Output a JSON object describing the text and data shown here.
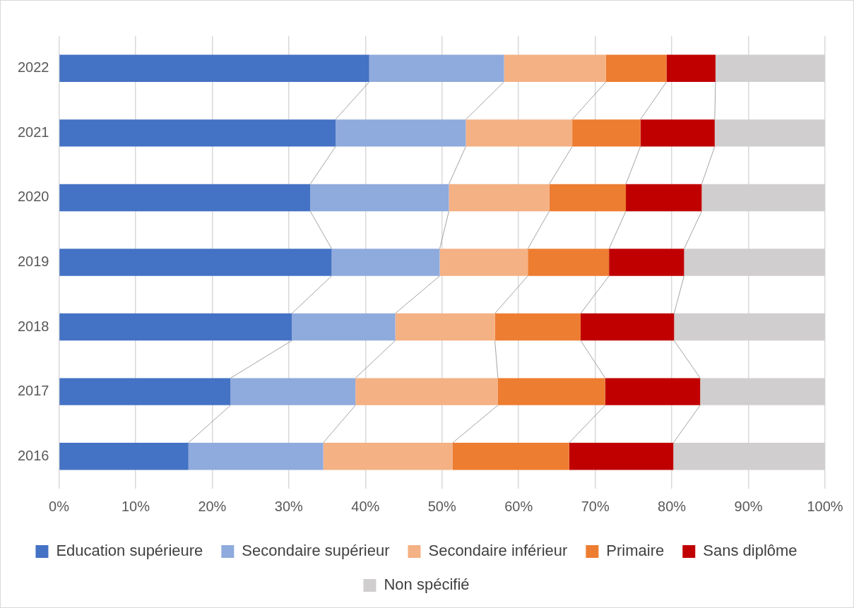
{
  "chart_data": {
    "type": "bar",
    "orientation": "horizontal",
    "stacked": true,
    "categories": [
      "2022",
      "2021",
      "2020",
      "2019",
      "2018",
      "2017",
      "2016"
    ],
    "series": [
      {
        "name": "Education supérieure",
        "color": "#4472c4",
        "values": [
          40.5,
          36.1,
          32.8,
          35.6,
          30.4,
          22.4,
          16.9
        ]
      },
      {
        "name": "Secondaire supérieur",
        "color": "#8faadc",
        "values": [
          17.6,
          17.0,
          18.1,
          14.1,
          13.5,
          16.3,
          17.6
        ]
      },
      {
        "name": "Secondaire inférieur",
        "color": "#f4b183",
        "values": [
          13.3,
          13.9,
          13.1,
          11.5,
          13.0,
          18.6,
          16.9
        ]
      },
      {
        "name": "Primaire",
        "color": "#ed7d31",
        "values": [
          7.9,
          8.9,
          10.0,
          10.6,
          11.2,
          14.0,
          15.2
        ]
      },
      {
        "name": "Sans diplôme",
        "color": "#c00000",
        "values": [
          6.4,
          9.7,
          9.9,
          9.8,
          12.2,
          12.4,
          13.6
        ]
      },
      {
        "name": "Non spécifié",
        "color": "#d0cece",
        "values": [
          14.3,
          14.4,
          16.1,
          18.4,
          19.7,
          16.3,
          19.8
        ]
      }
    ],
    "xlim": [
      0,
      100
    ],
    "xticks": [
      {
        "value": 0,
        "label": "0%"
      },
      {
        "value": 10,
        "label": "10%"
      },
      {
        "value": 20,
        "label": "20%"
      },
      {
        "value": 30,
        "label": "30%"
      },
      {
        "value": 40,
        "label": "40%"
      },
      {
        "value": 50,
        "label": "50%"
      },
      {
        "value": 60,
        "label": "60%"
      },
      {
        "value": 70,
        "label": "70%"
      },
      {
        "value": 80,
        "label": "80%"
      },
      {
        "value": 90,
        "label": "90%"
      },
      {
        "value": 100,
        "label": "100%"
      }
    ],
    "grid": "x",
    "legend": "bottom"
  }
}
